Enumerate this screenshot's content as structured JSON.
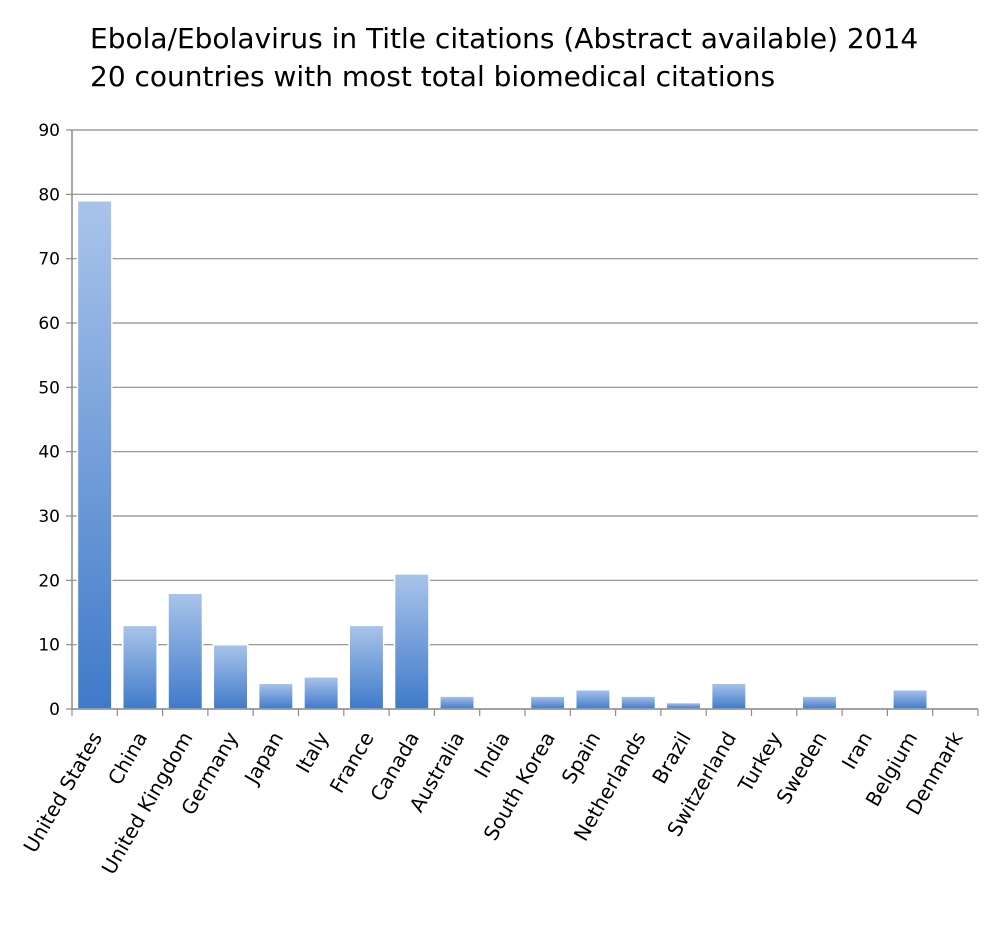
{
  "title_lines": [
    "Ebola/Ebolavirus in Title citations (Abstract available) 2014",
    "20 countries with most total biomedical citations"
  ],
  "chart_data": {
    "type": "bar",
    "title": "Ebola/Ebolavirus in Title citations (Abstract available) 2014 — 20 countries with most total biomedical citations",
    "xlabel": "",
    "ylabel": "",
    "ylim": [
      0,
      90
    ],
    "yticks": [
      0,
      10,
      20,
      30,
      40,
      50,
      60,
      70,
      80,
      90
    ],
    "grid": true,
    "categories": [
      "United States",
      "China",
      "United Kingdom",
      "Germany",
      "Japan",
      "Italy",
      "France",
      "Canada",
      "Australia",
      "India",
      "South Korea",
      "Spain",
      "Netherlands",
      "Brazil",
      "Switzerland",
      "Turkey",
      "Sweden",
      "Iran",
      "Belgium",
      "Denmark"
    ],
    "values": [
      79,
      13,
      18,
      10,
      4,
      5,
      13,
      21,
      2,
      0,
      2,
      3,
      2,
      1,
      4,
      0,
      2,
      0,
      3,
      0
    ],
    "colors": {
      "bar_top": "#a9c4ea",
      "bar_bottom": "#3f7ac9",
      "grid": "#8c8c8c",
      "axis": "#8c8c8c"
    }
  }
}
